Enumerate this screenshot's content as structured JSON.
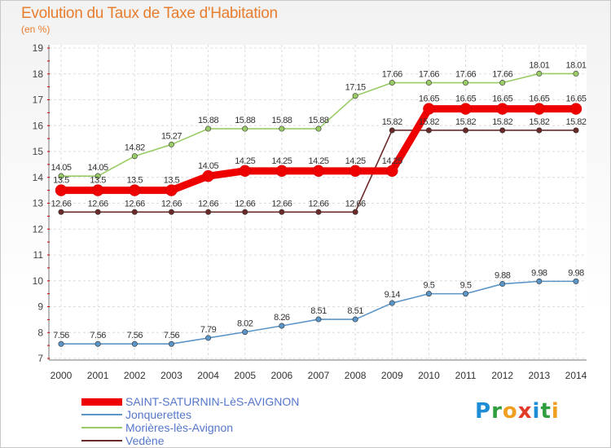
{
  "header": {
    "title": "Evolution du Taux de Taxe d'Habitation",
    "subtitle": "(en %)"
  },
  "logo": {
    "text": "Proxiti",
    "colors": [
      "#1f8dd6",
      "#2e9e3e",
      "#f0a020",
      "#e23a28",
      "#1f8dd6",
      "#2e9e3e",
      "#f0a020"
    ]
  },
  "chart_data": {
    "type": "line",
    "x": [
      "2000",
      "2001",
      "2002",
      "2003",
      "2004",
      "2005",
      "2006",
      "2007",
      "2008",
      "2009",
      "2010",
      "2011",
      "2012",
      "2013",
      "2014"
    ],
    "ylim": [
      7,
      19
    ],
    "yticks": [
      "7",
      "8",
      "9",
      "10",
      "11",
      "12",
      "13",
      "14",
      "15",
      "16",
      "17",
      "18",
      "19"
    ],
    "grid": true,
    "series": [
      {
        "name": "SAINT-SATURNIN-LèS-AVIGNON",
        "color": "#ee0000",
        "thick": true,
        "values": [
          13.5,
          13.5,
          13.5,
          13.5,
          14.05,
          14.25,
          14.25,
          14.25,
          14.25,
          14.25,
          16.65,
          16.65,
          16.65,
          16.65,
          16.65
        ],
        "labels": [
          "13.5",
          "13.5",
          "13.5",
          "13.5",
          "14.05",
          "14.25",
          "14.25",
          "14.25",
          "14.25",
          "14.25",
          "16.65",
          "16.65",
          "16.65",
          "16.65",
          "16.65"
        ]
      },
      {
        "name": "Jonquerettes",
        "color": "#5b95c8",
        "values": [
          7.56,
          7.56,
          7.56,
          7.56,
          7.79,
          8.02,
          8.26,
          8.51,
          8.51,
          9.14,
          9.5,
          9.5,
          9.88,
          9.98,
          9.98
        ],
        "labels": [
          "7.56",
          "7.56",
          "7.56",
          "7.56",
          "7.79",
          "8.02",
          "8.26",
          "8.51",
          "8.51",
          "9.14",
          "9.5",
          "9.5",
          "9.88",
          "9.98",
          "9.98"
        ]
      },
      {
        "name": "Morières-lès-Avignon",
        "color": "#99cc66",
        "values": [
          14.05,
          14.05,
          14.82,
          15.27,
          15.88,
          15.88,
          15.88,
          15.88,
          17.15,
          17.66,
          17.66,
          17.66,
          17.66,
          18.01,
          18.01
        ],
        "labels": [
          "14.05",
          "14.05",
          "14.82",
          "15.27",
          "15.88",
          "15.88",
          "15.88",
          "15.88",
          "17.15",
          "17.66",
          "17.66",
          "17.66",
          "17.66",
          "18.01",
          "18.01"
        ]
      },
      {
        "name": "Vedène",
        "color": "#6b2a2a",
        "values": [
          12.66,
          12.66,
          12.66,
          12.66,
          12.66,
          12.66,
          12.66,
          12.66,
          12.66,
          15.82,
          15.82,
          15.82,
          15.82,
          15.82,
          15.82
        ],
        "labels": [
          "12.66",
          "12.66",
          "12.66",
          "12.66",
          "12.66",
          "12.66",
          "12.66",
          "12.66",
          "12.66",
          "15.82",
          "15.82",
          "15.82",
          "15.82",
          "15.82",
          "15.82"
        ]
      }
    ],
    "legend_order": [
      0,
      1,
      2,
      3
    ],
    "legend_placement": "bottom-left"
  }
}
